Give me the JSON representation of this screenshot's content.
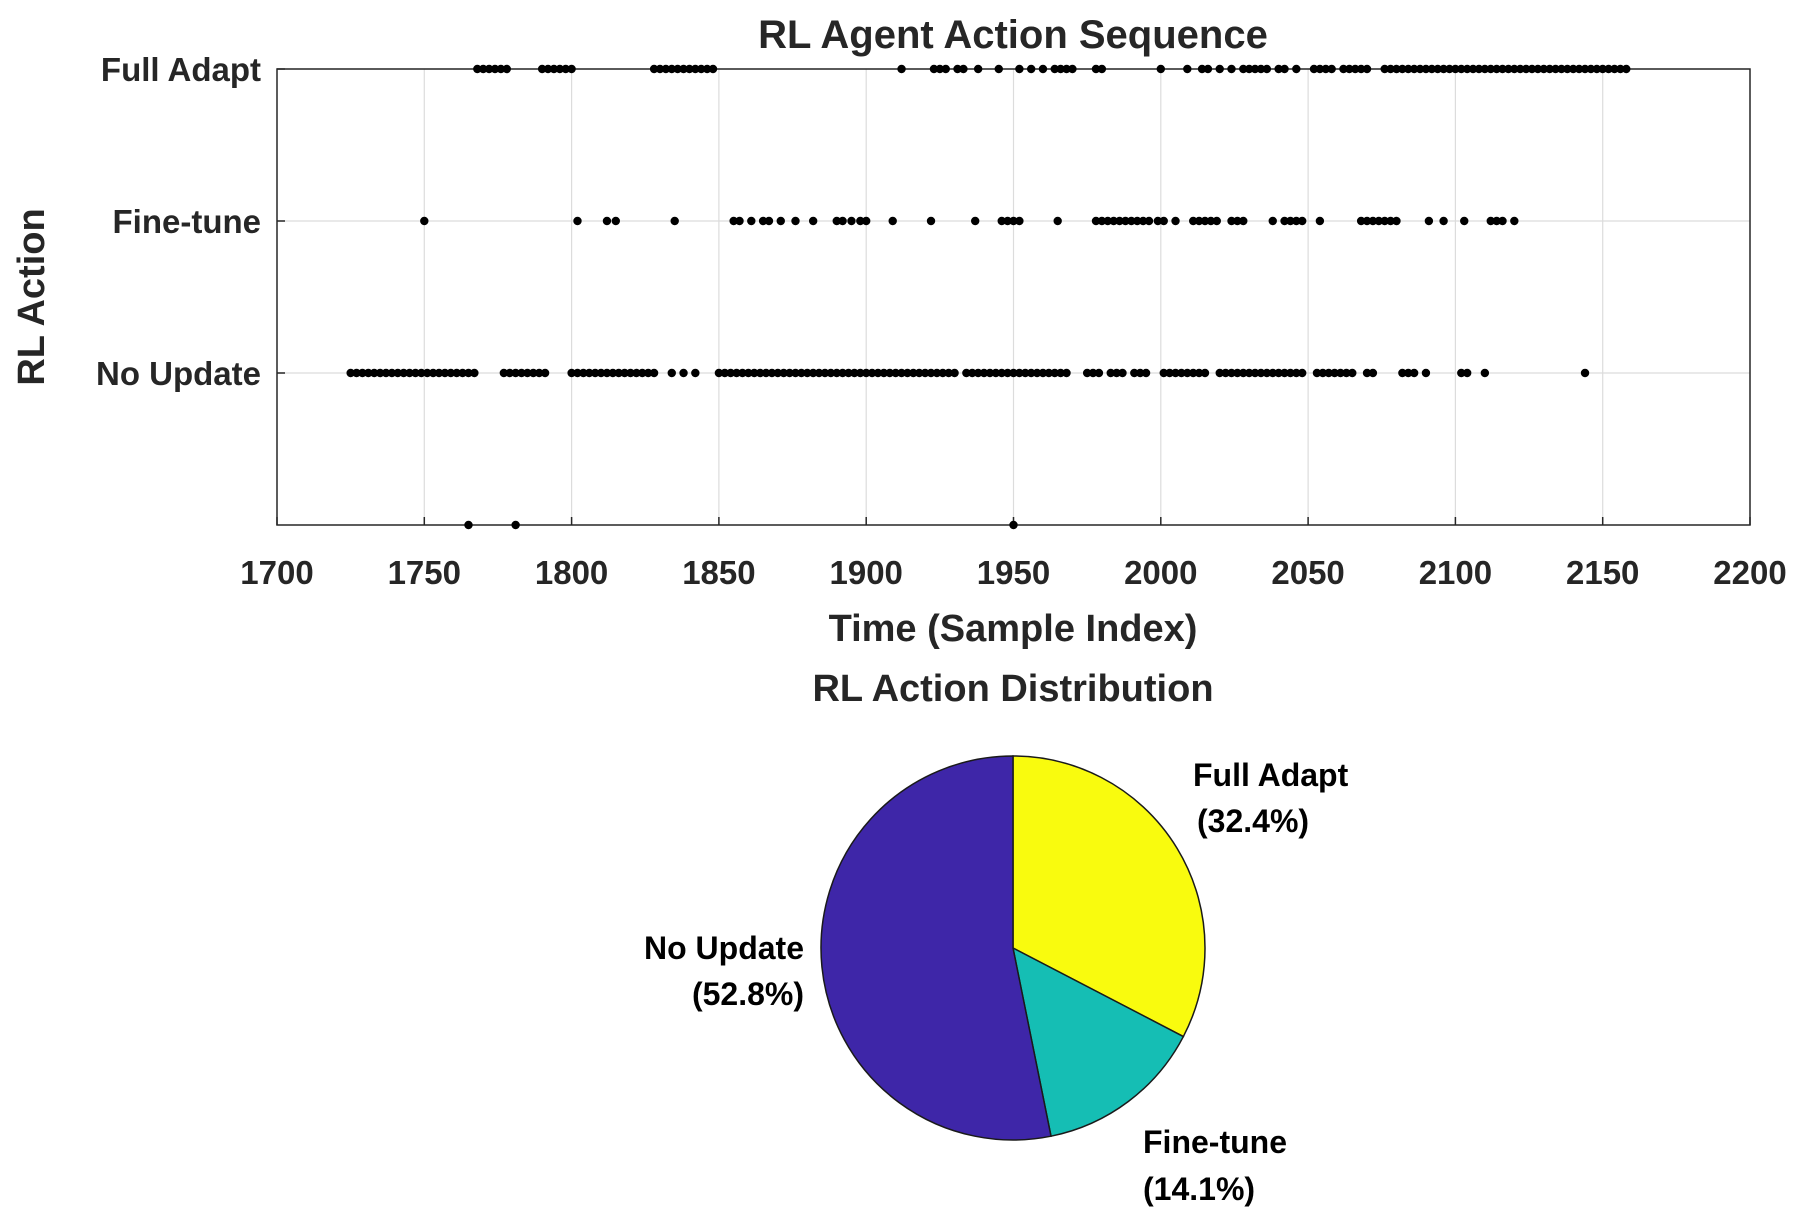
{
  "chart_data": [
    {
      "type": "scatter",
      "title": "RL Agent Action Sequence",
      "xlabel": "Time (Sample Index)",
      "ylabel": "RL Action",
      "xlim": [
        1700,
        2200
      ],
      "xticks": [
        1700,
        1750,
        1800,
        1850,
        1900,
        1950,
        2000,
        2050,
        2100,
        2150,
        2200
      ],
      "ylim": [
        -1,
        2
      ],
      "yticks": [
        0,
        1,
        2
      ],
      "ytick_labels": [
        "No Update",
        "Fine-tune",
        "Full Adapt"
      ],
      "grid": true,
      "marker_color": "#000000",
      "series": [
        {
          "name": "No Update",
          "y": 0,
          "x": [
            1725,
            1727,
            1729,
            1731,
            1733,
            1735,
            1737,
            1739,
            1741,
            1743,
            1745,
            1747,
            1749,
            1751,
            1753,
            1755,
            1757,
            1759,
            1761,
            1763,
            1765,
            1767,
            1777,
            1779,
            1781,
            1783,
            1785,
            1787,
            1789,
            1791,
            1800,
            1802,
            1804,
            1806,
            1808,
            1810,
            1812,
            1814,
            1816,
            1818,
            1820,
            1822,
            1824,
            1826,
            1828,
            1834,
            1838,
            1842,
            1850,
            1852,
            1854,
            1856,
            1858,
            1860,
            1862,
            1864,
            1866,
            1868,
            1870,
            1872,
            1874,
            1876,
            1878,
            1880,
            1882,
            1884,
            1886,
            1888,
            1890,
            1892,
            1894,
            1896,
            1898,
            1900,
            1902,
            1904,
            1906,
            1908,
            1910,
            1912,
            1914,
            1916,
            1918,
            1920,
            1922,
            1924,
            1926,
            1928,
            1930,
            1934,
            1936,
            1938,
            1940,
            1942,
            1944,
            1946,
            1948,
            1950,
            1952,
            1954,
            1956,
            1958,
            1960,
            1962,
            1964,
            1966,
            1968,
            1975,
            1977,
            1979,
            1983,
            1985,
            1987,
            1991,
            1993,
            1995,
            2001,
            2003,
            2005,
            2007,
            2009,
            2011,
            2013,
            2015,
            2020,
            2022,
            2024,
            2026,
            2028,
            2030,
            2032,
            2034,
            2036,
            2038,
            2040,
            2042,
            2044,
            2046,
            2048,
            2053,
            2055,
            2057,
            2059,
            2061,
            2063,
            2065,
            2070,
            2072,
            2082,
            2084,
            2086,
            2090,
            2102,
            2104,
            2110,
            2144
          ]
        },
        {
          "name": "Fine-tune",
          "y": 1,
          "x": [
            1750,
            1802,
            1812,
            1815,
            1835,
            1855,
            1857,
            1861,
            1865,
            1867,
            1871,
            1876,
            1882,
            1890,
            1892,
            1895,
            1898,
            1900,
            1909,
            1922,
            1937,
            1946,
            1948,
            1950,
            1952,
            1965,
            1978,
            1980,
            1982,
            1984,
            1986,
            1988,
            1990,
            1992,
            1994,
            1996,
            1999,
            2001,
            2005,
            2011,
            2013,
            2015,
            2017,
            2019,
            2024,
            2026,
            2028,
            2038,
            2042,
            2044,
            2046,
            2048,
            2054,
            2068,
            2070,
            2072,
            2074,
            2076,
            2078,
            2080,
            2091,
            2096,
            2103,
            2112,
            2114,
            2116,
            2120
          ]
        },
        {
          "name": "Full Adapt",
          "y": 2,
          "x": [
            1768,
            1770,
            1772,
            1774,
            1776,
            1778,
            1790,
            1792,
            1794,
            1796,
            1798,
            1800,
            1828,
            1830,
            1832,
            1834,
            1836,
            1838,
            1840,
            1842,
            1844,
            1846,
            1848,
            1912,
            1923,
            1925,
            1927,
            1931,
            1933,
            1938,
            1945,
            1952,
            1956,
            1960,
            1964,
            1966,
            1968,
            1970,
            1978,
            1980,
            2000,
            2009,
            2014,
            2016,
            2020,
            2024,
            2028,
            2030,
            2032,
            2034,
            2036,
            2040,
            2042,
            2046,
            2052,
            2054,
            2056,
            2058,
            2062,
            2064,
            2066,
            2068,
            2070,
            2076,
            2078,
            2080,
            2082,
            2084,
            2086,
            2088,
            2090,
            2092,
            2094,
            2096,
            2098,
            2100,
            2102,
            2104,
            2106,
            2108,
            2110,
            2112,
            2114,
            2116,
            2118,
            2120,
            2122,
            2124,
            2126,
            2128,
            2130,
            2132,
            2134,
            2136,
            2138,
            2140,
            2142,
            2144,
            2146,
            2148,
            2150,
            2152,
            2154,
            2156,
            2158
          ]
        },
        {
          "name": "",
          "y": -1,
          "x": [
            1765,
            1781,
            1950
          ]
        }
      ]
    },
    {
      "type": "pie",
      "title": "RL Action Distribution",
      "slices": [
        {
          "label": "Full Adapt",
          "pct_label": "(32.4%)",
          "value": 32.4,
          "color": "#F9FB0E"
        },
        {
          "label": "Fine-tune",
          "pct_label": "(14.1%)",
          "value": 14.1,
          "color": "#15BEB4"
        },
        {
          "label": "No Update",
          "pct_label": "(52.8%)",
          "value": 52.8,
          "color": "#3E26A8"
        }
      ]
    }
  ]
}
